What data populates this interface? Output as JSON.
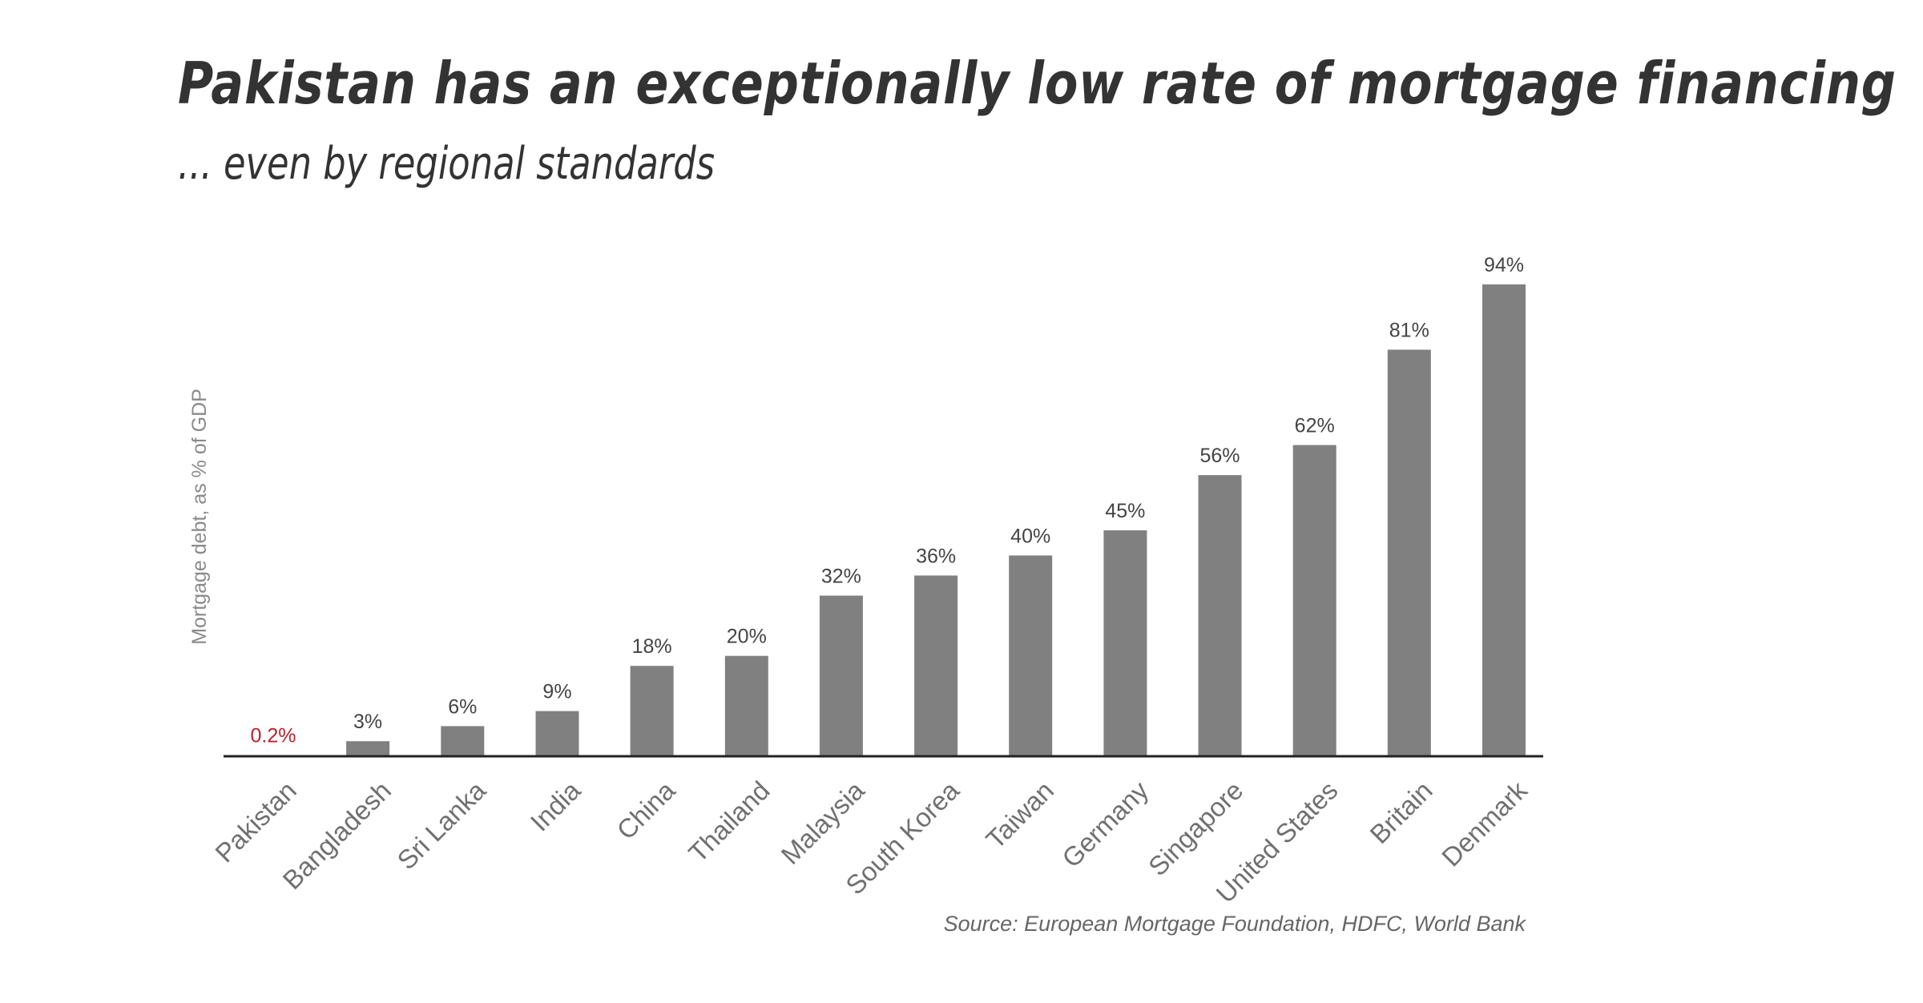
{
  "title": "Pakistan has an exceptionally low rate of mortgage financing",
  "subtitle": "... even by regional standards",
  "source": "Source: European Mortgage Foundation, HDFC, World Bank",
  "colors": {
    "bar": "#808080",
    "highlight_label": "#c0202a",
    "label": "#444444",
    "axis": "#222222"
  },
  "chart_data": {
    "type": "bar",
    "title": "Pakistan has an exceptionally low rate of mortgage financing",
    "subtitle": "... even by regional standards",
    "xlabel": "",
    "ylabel": "Mortgage debt, as % of GDP",
    "categories": [
      "Pakistan",
      "Bangladesh",
      "Sri Lanka",
      "India",
      "China",
      "Thailand",
      "Malaysia",
      "South Korea",
      "Taiwan",
      "Germany",
      "Singapore",
      "United States",
      "Britain",
      "Denmark"
    ],
    "values": [
      0.2,
      3,
      6,
      9,
      18,
      20,
      32,
      36,
      40,
      45,
      56,
      62,
      81,
      94
    ],
    "data_labels": [
      "0.2%",
      "3%",
      "6%",
      "9%",
      "18%",
      "20%",
      "32%",
      "36%",
      "40%",
      "45%",
      "56%",
      "62%",
      "81%",
      "94%"
    ],
    "highlight_category": "Pakistan",
    "ylim": [
      0,
      94
    ],
    "grid": false,
    "legend": "none",
    "source": "Source: European Mortgage Foundation, HDFC, World Bank"
  }
}
